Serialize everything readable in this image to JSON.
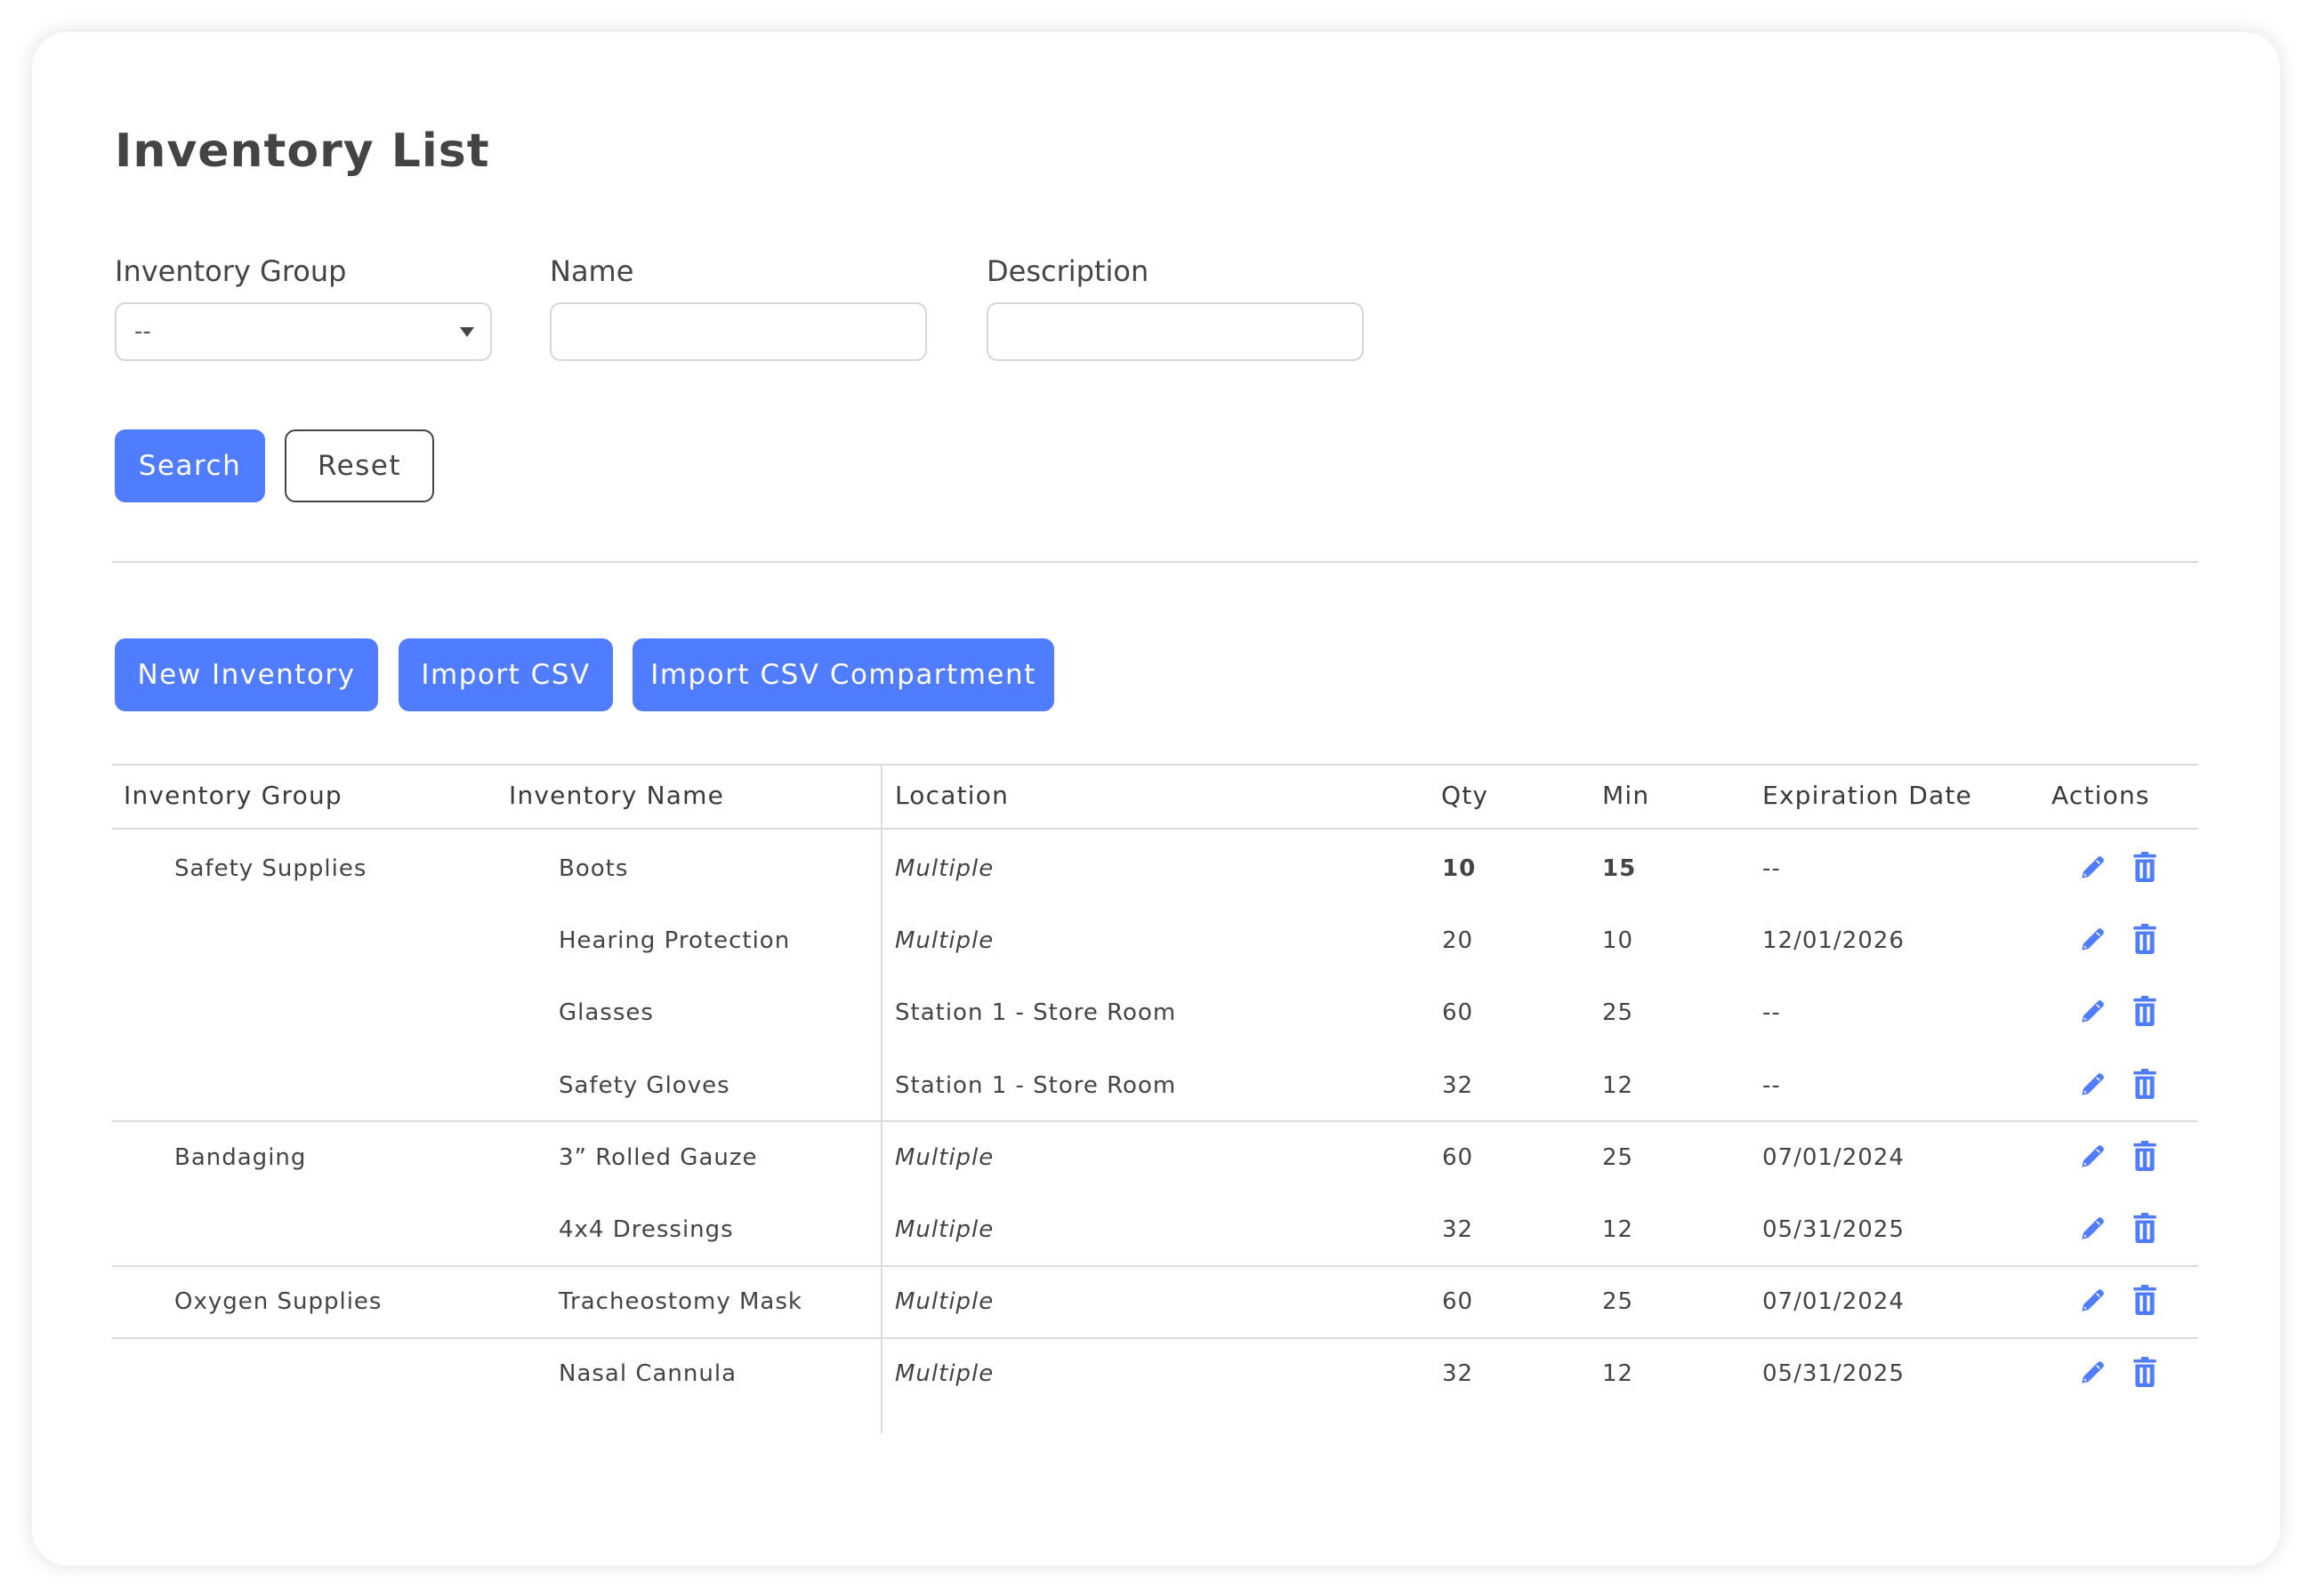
{
  "page": {
    "title": "Inventory List"
  },
  "filters": {
    "group_label": "Inventory Group",
    "group_value": "--",
    "name_label": "Name",
    "name_value": "",
    "description_label": "Description",
    "description_value": ""
  },
  "actions": {
    "search": "Search",
    "reset": "Reset"
  },
  "toolbar": {
    "new_inventory": "New Inventory",
    "import_csv": "Import CSV",
    "import_csv_compartment": "Import CSV Compartment"
  },
  "colors": {
    "accent": "#507cff",
    "text": "#444444"
  },
  "table": {
    "headers": [
      "Inventory Group",
      "Inventory Name",
      "Location",
      "Qty",
      "Min",
      "Expiration Date",
      "Actions"
    ],
    "rows": [
      {
        "group": "Safety Supplies",
        "name": "Boots",
        "location": "Multiple",
        "location_italic": true,
        "qty": "10",
        "min": "15",
        "expiration": "--",
        "low_stock": true
      },
      {
        "group": "",
        "name": "Hearing Protection",
        "location": "Multiple",
        "location_italic": true,
        "qty": "20",
        "min": "10",
        "expiration": "12/01/2026"
      },
      {
        "group": "",
        "name": "Glasses",
        "location": "Station 1 - Store Room",
        "location_italic": false,
        "qty": "60",
        "min": "25",
        "expiration": "--"
      },
      {
        "group": "",
        "name": "Safety Gloves",
        "location": "Station 1 - Store Room",
        "location_italic": false,
        "qty": "32",
        "min": "12",
        "expiration": "--",
        "group_end": true
      },
      {
        "group": "Bandaging",
        "name": "3” Rolled Gauze",
        "location": "Multiple",
        "location_italic": true,
        "qty": "60",
        "min": "25",
        "expiration": "07/01/2024"
      },
      {
        "group": "",
        "name": "4x4 Dressings",
        "location": "Multiple",
        "location_italic": true,
        "qty": "32",
        "min": "12",
        "expiration": "05/31/2025",
        "group_end": true
      },
      {
        "group": "Oxygen Supplies",
        "name": "Tracheostomy Mask",
        "location": "Multiple",
        "location_italic": true,
        "qty": "60",
        "min": "25",
        "expiration": "07/01/2024",
        "group_end": true
      },
      {
        "group": "",
        "name": "Nasal Cannula",
        "location": "Multiple",
        "location_italic": true,
        "qty": "32",
        "min": "12",
        "expiration": "05/31/2025"
      }
    ],
    "row_icons": [
      "pencil-icon",
      "trash-icon"
    ]
  }
}
